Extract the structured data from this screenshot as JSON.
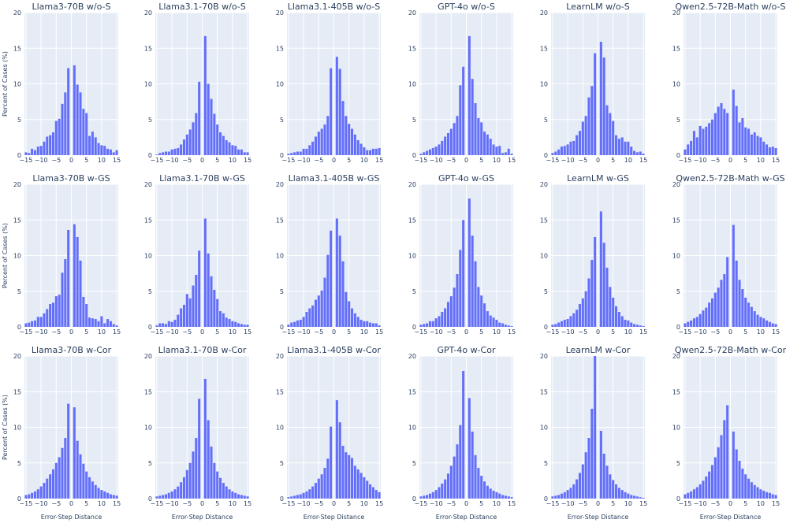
{
  "colors": {
    "bar": "#636efa",
    "plot_bg": "#e5ecf6",
    "grid": "#ffffff",
    "text": "#2a3f5f"
  },
  "xlabel": "Error-Step Distance",
  "ylabel": "Percent of Cases (%)",
  "chart_data": [
    {
      "type": "bar",
      "title": "Llama3-70B w/o-S",
      "xlim": [
        -15,
        15
      ],
      "ylim": [
        0,
        20
      ],
      "x": [
        -15,
        -14,
        -13,
        -12,
        -11,
        -10,
        -9,
        -8,
        -7,
        -6,
        -5,
        -4,
        -3,
        -2,
        -1,
        1,
        2,
        3,
        4,
        5,
        6,
        7,
        8,
        9,
        10,
        11,
        12,
        13,
        14,
        15
      ],
      "values": [
        0.4,
        0.3,
        0.9,
        0.7,
        1.2,
        1.3,
        1.9,
        2.6,
        2.8,
        3.2,
        4.8,
        5.1,
        7.2,
        8.8,
        12.2,
        12.6,
        9.9,
        8.8,
        6.5,
        5.9,
        2.7,
        3.3,
        2.5,
        1.7,
        1.4,
        1.3,
        0.9,
        0.8,
        0.4,
        0.7
      ]
    },
    {
      "type": "bar",
      "title": "Llama3.1-70B w/o-S",
      "xlim": [
        -15,
        15
      ],
      "ylim": [
        0,
        20
      ],
      "x": [
        -15,
        -14,
        -13,
        -12,
        -11,
        -10,
        -9,
        -8,
        -7,
        -6,
        -5,
        -4,
        -3,
        -2,
        -1,
        1,
        2,
        3,
        4,
        5,
        6,
        7,
        8,
        9,
        10,
        11,
        12,
        13,
        14,
        15
      ],
      "values": [
        0.1,
        0.3,
        0.4,
        0.5,
        0.5,
        0.8,
        0.9,
        1.0,
        1.5,
        2.2,
        2.9,
        3.6,
        4.6,
        5.9,
        10.3,
        16.7,
        10.0,
        7.9,
        5.8,
        4.3,
        3.2,
        2.7,
        2.1,
        1.8,
        1.4,
        1.3,
        0.8,
        0.8,
        0.4,
        0.4
      ]
    },
    {
      "type": "bar",
      "title": "Llama3.1-405B w/o-S",
      "xlim": [
        -15,
        15
      ],
      "ylim": [
        0,
        20
      ],
      "x": [
        -15,
        -14,
        -13,
        -12,
        -11,
        -10,
        -9,
        -8,
        -7,
        -6,
        -5,
        -4,
        -3,
        -2,
        -1,
        1,
        2,
        3,
        4,
        5,
        6,
        7,
        8,
        9,
        10,
        11,
        12,
        13,
        14,
        15
      ],
      "values": [
        0.2,
        0.3,
        0.4,
        0.5,
        0.5,
        0.9,
        0.9,
        1.4,
        1.9,
        2.6,
        3.3,
        3.7,
        4.3,
        5.5,
        12.2,
        13.8,
        12.1,
        7.6,
        5.5,
        4.4,
        3.7,
        2.9,
        2.1,
        1.6,
        1.1,
        0.7,
        0.7,
        0.9,
        0.9,
        1.0
      ]
    },
    {
      "type": "bar",
      "title": "GPT-4o w/o-S",
      "xlim": [
        -15,
        15
      ],
      "ylim": [
        0,
        20
      ],
      "x": [
        -15,
        -14,
        -13,
        -12,
        -11,
        -10,
        -9,
        -8,
        -7,
        -6,
        -5,
        -4,
        -3,
        -2,
        -1,
        1,
        2,
        3,
        4,
        5,
        6,
        7,
        8,
        9,
        10,
        11,
        12,
        13,
        14,
        15
      ],
      "values": [
        0.2,
        0.4,
        0.6,
        0.8,
        1.0,
        1.2,
        1.5,
        2.0,
        2.6,
        3.1,
        3.7,
        4.5,
        5.5,
        9.8,
        12.4,
        16.7,
        10.7,
        7.3,
        5.2,
        4.6,
        3.3,
        2.9,
        2.3,
        1.5,
        1.2,
        1.3,
        0.3,
        0.4,
        0.9,
        0.2
      ]
    },
    {
      "type": "bar",
      "title": "LearnLM w/o-S",
      "xlim": [
        -15,
        15
      ],
      "ylim": [
        0,
        20
      ],
      "x": [
        -15,
        -14,
        -13,
        -12,
        -11,
        -10,
        -9,
        -8,
        -7,
        -6,
        -5,
        -4,
        -3,
        -2,
        -1,
        1,
        2,
        3,
        4,
        5,
        6,
        7,
        8,
        9,
        10,
        11,
        12,
        13,
        14,
        15
      ],
      "values": [
        0.3,
        0.5,
        0.8,
        1.2,
        1.3,
        1.5,
        1.9,
        2.0,
        2.8,
        3.4,
        4.7,
        5.5,
        8.1,
        9.7,
        14.3,
        15.9,
        13.7,
        7.0,
        5.9,
        4.8,
        2.8,
        2.3,
        2.5,
        1.9,
        1.9,
        1.2,
        0.6,
        0.4,
        0.5,
        0.2
      ]
    },
    {
      "type": "bar",
      "title": "Qwen2.5-72B-Math w/o-S",
      "xlim": [
        -15,
        15
      ],
      "ylim": [
        0,
        20
      ],
      "x": [
        -15,
        -14,
        -13,
        -12,
        -11,
        -10,
        -9,
        -8,
        -7,
        -6,
        -5,
        -4,
        -3,
        -2,
        -1,
        1,
        2,
        3,
        4,
        5,
        6,
        7,
        8,
        9,
        10,
        11,
        12,
        13,
        14,
        15
      ],
      "values": [
        0.8,
        1.5,
        2.0,
        3.4,
        2.5,
        4.1,
        3.7,
        4.0,
        4.5,
        5.0,
        5.9,
        6.8,
        7.3,
        6.5,
        5.9,
        9.2,
        6.9,
        4.6,
        5.2,
        3.9,
        3.7,
        2.9,
        3.2,
        2.7,
        2.5,
        1.9,
        1.5,
        1.1,
        1.2,
        1.0
      ]
    },
    {
      "type": "bar",
      "title": "Llama3-70B w-GS",
      "xlim": [
        -15,
        15
      ],
      "ylim": [
        0,
        20
      ],
      "x": [
        -15,
        -14,
        -13,
        -12,
        -11,
        -10,
        -9,
        -8,
        -7,
        -6,
        -5,
        -4,
        -3,
        -2,
        -1,
        1,
        2,
        3,
        4,
        5,
        6,
        7,
        8,
        9,
        10,
        11,
        12,
        13,
        14,
        15
      ],
      "values": [
        0.5,
        0.6,
        0.8,
        0.9,
        1.4,
        1.4,
        1.9,
        2.5,
        3.2,
        3.4,
        4.3,
        4.5,
        7.6,
        9.5,
        13.6,
        14.4,
        12.6,
        9.3,
        4.2,
        3.2,
        1.3,
        1.2,
        1.1,
        0.8,
        1.5,
        0.5,
        1.1,
        0.8,
        0.4,
        0.2
      ]
    },
    {
      "type": "bar",
      "title": "Llama3.1-70B w-GS",
      "xlim": [
        -15,
        15
      ],
      "ylim": [
        0,
        20
      ],
      "x": [
        -15,
        -14,
        -13,
        -12,
        -11,
        -10,
        -9,
        -8,
        -7,
        -6,
        -5,
        -4,
        -3,
        -2,
        -1,
        1,
        2,
        3,
        4,
        5,
        6,
        7,
        8,
        9,
        10,
        11,
        12,
        13,
        14,
        15
      ],
      "values": [
        0.2,
        0.5,
        0.5,
        0.4,
        0.8,
        0.7,
        1.0,
        1.7,
        2.6,
        3.1,
        4.6,
        4.0,
        5.8,
        7.3,
        10.7,
        15.2,
        10.3,
        7.1,
        5.2,
        3.9,
        2.2,
        1.9,
        1.3,
        1.1,
        0.8,
        0.7,
        0.5,
        0.4,
        0.3,
        0.3
      ]
    },
    {
      "type": "bar",
      "title": "Llama3.1-405B w-GS",
      "xlim": [
        -15,
        15
      ],
      "ylim": [
        0,
        20
      ],
      "x": [
        -15,
        -14,
        -13,
        -12,
        -11,
        -10,
        -9,
        -8,
        -7,
        -6,
        -5,
        -4,
        -3,
        -2,
        -1,
        1,
        2,
        3,
        4,
        5,
        6,
        7,
        8,
        9,
        10,
        11,
        12,
        13,
        14,
        15
      ],
      "values": [
        0.3,
        0.6,
        0.7,
        0.9,
        1.0,
        1.4,
        2.1,
        2.6,
        3.0,
        3.8,
        4.4,
        5.1,
        6.9,
        10.1,
        13.5,
        15.2,
        12.8,
        9.2,
        4.9,
        3.6,
        2.6,
        1.9,
        1.4,
        1.0,
        0.8,
        0.8,
        0.6,
        0.5,
        0.5,
        0.2
      ]
    },
    {
      "type": "bar",
      "title": "GPT-4o w-GS",
      "xlim": [
        -15,
        15
      ],
      "ylim": [
        0,
        20
      ],
      "x": [
        -15,
        -14,
        -13,
        -12,
        -11,
        -10,
        -9,
        -8,
        -7,
        -6,
        -5,
        -4,
        -3,
        -2,
        -1,
        1,
        2,
        3,
        4,
        5,
        6,
        7,
        8,
        9,
        10,
        11,
        12,
        13,
        14,
        15
      ],
      "values": [
        0.3,
        0.4,
        0.5,
        0.8,
        0.8,
        1.2,
        1.5,
        2.1,
        2.6,
        3.5,
        4.3,
        5.5,
        7.4,
        10.8,
        15.0,
        18.0,
        12.8,
        9.2,
        5.6,
        4.4,
        3.3,
        2.2,
        1.6,
        1.3,
        1.0,
        0.6,
        0.5,
        0.3,
        0.2,
        0.1
      ]
    },
    {
      "type": "bar",
      "title": "LearnLM w-GS",
      "xlim": [
        -15,
        15
      ],
      "ylim": [
        0,
        20
      ],
      "x": [
        -15,
        -14,
        -13,
        -12,
        -11,
        -10,
        -9,
        -8,
        -7,
        -6,
        -5,
        -4,
        -3,
        -2,
        -1,
        1,
        2,
        3,
        4,
        5,
        6,
        7,
        8,
        9,
        10,
        11,
        12,
        13,
        14,
        15
      ],
      "values": [
        0.3,
        0.4,
        0.6,
        0.8,
        1.0,
        1.1,
        1.5,
        1.9,
        2.4,
        3.2,
        4.0,
        5.0,
        6.8,
        9.4,
        12.6,
        16.2,
        11.8,
        8.3,
        5.6,
        4.1,
        2.9,
        2.1,
        1.5,
        1.0,
        0.9,
        0.6,
        0.4,
        0.3,
        0.2,
        0.1
      ]
    },
    {
      "type": "bar",
      "title": "Qwen2.5-72B-Math w-GS",
      "xlim": [
        -15,
        15
      ],
      "ylim": [
        0,
        20
      ],
      "x": [
        -15,
        -14,
        -13,
        -12,
        -11,
        -10,
        -9,
        -8,
        -7,
        -6,
        -5,
        -4,
        -3,
        -2,
        -1,
        1,
        2,
        3,
        4,
        5,
        6,
        7,
        8,
        9,
        10,
        11,
        12,
        13,
        14,
        15
      ],
      "values": [
        0.5,
        0.7,
        0.9,
        1.2,
        1.4,
        1.8,
        2.3,
        2.7,
        3.4,
        4.0,
        4.8,
        5.5,
        6.6,
        7.4,
        9.8,
        14.3,
        9.3,
        6.6,
        5.3,
        4.1,
        3.4,
        2.8,
        2.2,
        1.7,
        1.4,
        1.2,
        0.9,
        0.7,
        0.5,
        0.4
      ]
    },
    {
      "type": "bar",
      "title": "Llama3-70B w-Cor",
      "xlim": [
        -15,
        15
      ],
      "ylim": [
        0,
        20
      ],
      "x": [
        -15,
        -14,
        -13,
        -12,
        -11,
        -10,
        -9,
        -8,
        -7,
        -6,
        -5,
        -4,
        -3,
        -2,
        -1,
        1,
        2,
        3,
        4,
        5,
        6,
        7,
        8,
        9,
        10,
        11,
        12,
        13,
        14,
        15
      ],
      "values": [
        0.5,
        0.6,
        0.8,
        1.0,
        1.3,
        1.7,
        2.2,
        2.8,
        3.4,
        4.1,
        5.0,
        5.8,
        7.1,
        8.5,
        13.3,
        12.8,
        8.1,
        6.2,
        4.9,
        3.8,
        3.0,
        2.4,
        1.9,
        1.5,
        1.2,
        1.0,
        0.8,
        0.6,
        0.5,
        0.4
      ]
    },
    {
      "type": "bar",
      "title": "Llama3.1-70B w-Cor",
      "xlim": [
        -15,
        15
      ],
      "ylim": [
        0,
        20
      ],
      "x": [
        -15,
        -14,
        -13,
        -12,
        -11,
        -10,
        -9,
        -8,
        -7,
        -6,
        -5,
        -4,
        -3,
        -2,
        -1,
        1,
        2,
        3,
        4,
        5,
        6,
        7,
        8,
        9,
        10,
        11,
        12,
        13,
        14,
        15
      ],
      "values": [
        0.3,
        0.4,
        0.5,
        0.6,
        0.8,
        1.0,
        1.3,
        1.7,
        2.3,
        3.0,
        4.0,
        5.0,
        6.6,
        8.5,
        14.0,
        16.8,
        11.0,
        7.3,
        5.0,
        3.8,
        2.9,
        2.2,
        1.7,
        1.3,
        1.0,
        0.8,
        0.6,
        0.5,
        0.4,
        0.3
      ]
    },
    {
      "type": "bar",
      "title": "Llama3.1-405B w-Cor",
      "xlim": [
        -15,
        15
      ],
      "ylim": [
        0,
        20
      ],
      "x": [
        -15,
        -14,
        -13,
        -12,
        -11,
        -10,
        -9,
        -8,
        -7,
        -6,
        -5,
        -4,
        -3,
        -2,
        -1,
        1,
        2,
        3,
        4,
        5,
        6,
        7,
        8,
        9,
        10,
        11,
        12,
        13,
        14,
        15
      ],
      "values": [
        0.2,
        0.3,
        0.4,
        0.5,
        0.6,
        0.8,
        1.0,
        1.3,
        1.7,
        2.2,
        2.8,
        3.4,
        4.3,
        5.6,
        10.1,
        13.8,
        10.7,
        7.4,
        6.5,
        6.1,
        5.7,
        4.6,
        4.1,
        3.6,
        3.0,
        2.5,
        2.0,
        1.6,
        1.2,
        0.9
      ]
    },
    {
      "type": "bar",
      "title": "GPT-4o w-Cor",
      "xlim": [
        -15,
        15
      ],
      "ylim": [
        0,
        20
      ],
      "x": [
        -15,
        -14,
        -13,
        -12,
        -11,
        -10,
        -9,
        -8,
        -7,
        -6,
        -5,
        -4,
        -3,
        -2,
        -1,
        1,
        2,
        3,
        4,
        5,
        6,
        7,
        8,
        9,
        10,
        11,
        12,
        13,
        14,
        15
      ],
      "values": [
        0.3,
        0.4,
        0.5,
        0.7,
        0.9,
        1.2,
        1.6,
        2.1,
        2.7,
        3.5,
        4.6,
        5.9,
        7.6,
        10.3,
        17.9,
        14.1,
        9.4,
        6.1,
        4.3,
        3.2,
        2.4,
        1.8,
        1.4,
        1.1,
        0.9,
        0.7,
        0.5,
        0.4,
        0.3,
        0.2
      ]
    },
    {
      "type": "bar",
      "title": "LearnLM w-Cor",
      "xlim": [
        -15,
        15
      ],
      "ylim": [
        0,
        20
      ],
      "x": [
        -15,
        -14,
        -13,
        -12,
        -11,
        -10,
        -9,
        -8,
        -7,
        -6,
        -5,
        -4,
        -3,
        -2,
        -1,
        1,
        2,
        3,
        4,
        5,
        6,
        7,
        8,
        9,
        10,
        11,
        12,
        13,
        14,
        15
      ],
      "values": [
        0.3,
        0.4,
        0.5,
        0.7,
        0.9,
        1.2,
        1.5,
        2.0,
        2.7,
        3.6,
        4.8,
        6.5,
        8.5,
        12.6,
        20.0,
        9.5,
        6.3,
        4.6,
        3.4,
        2.6,
        2.0,
        1.5,
        1.2,
        0.9,
        0.7,
        0.5,
        0.4,
        0.3,
        0.2,
        0.1
      ]
    },
    {
      "type": "bar",
      "title": "Qwen2.5-72B-Math w-Cor",
      "xlim": [
        -15,
        15
      ],
      "ylim": [
        0,
        20
      ],
      "x": [
        -15,
        -14,
        -13,
        -12,
        -11,
        -10,
        -9,
        -8,
        -7,
        -6,
        -5,
        -4,
        -3,
        -2,
        -1,
        1,
        2,
        3,
        4,
        5,
        6,
        7,
        8,
        9,
        10,
        11,
        12,
        13,
        14,
        15
      ],
      "values": [
        0.6,
        0.8,
        1.0,
        1.3,
        1.6,
        2.0,
        2.5,
        3.1,
        3.8,
        4.7,
        5.8,
        7.2,
        8.9,
        11.0,
        13.1,
        9.4,
        6.9,
        5.3,
        4.2,
        3.4,
        2.8,
        2.3,
        1.9,
        1.6,
        1.3,
        1.1,
        0.9,
        0.8,
        0.6,
        0.5
      ]
    }
  ]
}
